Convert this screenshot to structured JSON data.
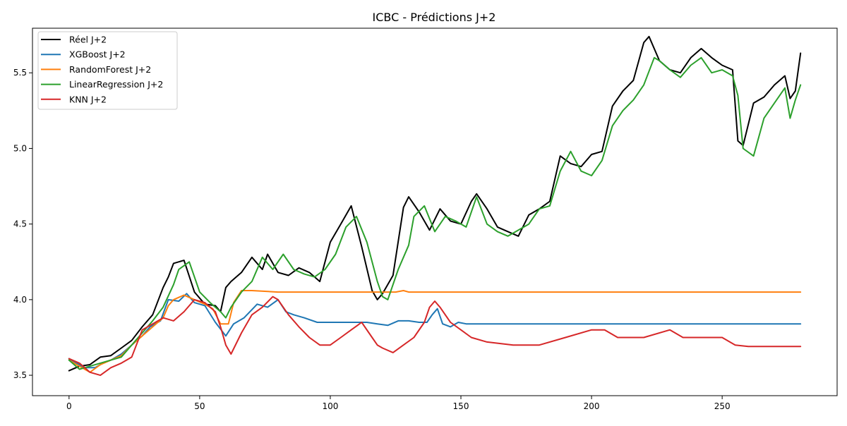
{
  "chart_data": {
    "type": "line",
    "title": "ICBC - Prédictions J+2",
    "xlabel": "",
    "ylabel": "",
    "xlim": [
      -14,
      294
    ],
    "ylim": [
      3.365,
      5.795
    ],
    "xticks": [
      0,
      50,
      100,
      150,
      200,
      250
    ],
    "yticks": [
      3.5,
      4.0,
      4.5,
      5.0,
      5.5
    ],
    "xtick_labels": [
      "0",
      "50",
      "100",
      "150",
      "200",
      "250"
    ],
    "ytick_labels": [
      "3.5",
      "4.0",
      "4.5",
      "5.0",
      "5.5"
    ],
    "grid": false,
    "legend_position": "upper-left",
    "series": [
      {
        "name": "Réel J+2",
        "color": "#000000",
        "x": [
          0,
          4,
          8,
          12,
          16,
          20,
          24,
          28,
          32,
          36,
          38,
          40,
          44,
          48,
          52,
          56,
          58,
          60,
          62,
          66,
          70,
          74,
          76,
          80,
          84,
          88,
          92,
          96,
          100,
          104,
          108,
          112,
          116,
          118,
          120,
          124,
          128,
          130,
          134,
          138,
          142,
          146,
          150,
          154,
          156,
          160,
          164,
          168,
          172,
          176,
          180,
          184,
          188,
          192,
          196,
          200,
          204,
          208,
          212,
          216,
          220,
          222,
          226,
          230,
          234,
          238,
          242,
          246,
          250,
          254,
          256,
          258,
          262,
          266,
          270,
          274,
          276,
          278,
          280
        ],
        "y": [
          3.53,
          3.56,
          3.57,
          3.62,
          3.63,
          3.68,
          3.73,
          3.82,
          3.9,
          4.08,
          4.15,
          4.24,
          4.26,
          4.05,
          3.97,
          3.96,
          3.92,
          4.08,
          4.12,
          4.18,
          4.28,
          4.2,
          4.3,
          4.18,
          4.16,
          4.21,
          4.18,
          4.12,
          4.38,
          4.5,
          4.62,
          4.35,
          4.06,
          4.0,
          4.04,
          4.16,
          4.61,
          4.68,
          4.58,
          4.46,
          4.6,
          4.52,
          4.5,
          4.65,
          4.7,
          4.6,
          4.48,
          4.45,
          4.42,
          4.56,
          4.6,
          4.65,
          4.95,
          4.9,
          4.88,
          4.96,
          4.98,
          5.28,
          5.38,
          5.45,
          5.7,
          5.74,
          5.58,
          5.52,
          5.5,
          5.6,
          5.66,
          5.6,
          5.55,
          5.52,
          5.05,
          5.02,
          5.3,
          5.34,
          5.42,
          5.48,
          5.33,
          5.38,
          5.63
        ]
      },
      {
        "name": "XGBoost J+2",
        "color": "#1f77b4",
        "x": [
          0,
          3,
          6,
          10,
          13,
          16,
          20,
          24,
          28,
          31,
          35,
          38,
          42,
          45,
          48,
          52,
          56,
          60,
          63,
          67,
          72,
          76,
          80,
          83,
          86,
          90,
          95,
          100,
          105,
          110,
          114,
          118,
          122,
          126,
          130,
          134,
          137,
          139,
          141,
          143,
          146,
          149,
          152,
          160,
          170,
          180,
          200,
          220,
          240,
          260,
          280
        ],
        "y": [
          3.61,
          3.58,
          3.55,
          3.55,
          3.58,
          3.6,
          3.64,
          3.7,
          3.76,
          3.82,
          3.86,
          4.0,
          3.99,
          4.04,
          3.98,
          3.96,
          3.85,
          3.76,
          3.84,
          3.88,
          3.97,
          3.95,
          4.0,
          3.92,
          3.9,
          3.88,
          3.85,
          3.85,
          3.85,
          3.85,
          3.85,
          3.84,
          3.83,
          3.86,
          3.86,
          3.85,
          3.85,
          3.9,
          3.94,
          3.84,
          3.82,
          3.85,
          3.84,
          3.84,
          3.84,
          3.84,
          3.84,
          3.84,
          3.84,
          3.84,
          3.84
        ]
      },
      {
        "name": "RandomForest J+2",
        "color": "#ff7f0e",
        "x": [
          0,
          4,
          8,
          12,
          16,
          20,
          24,
          28,
          32,
          36,
          38,
          40,
          44,
          48,
          52,
          55,
          58,
          61,
          63,
          66,
          70,
          80,
          86,
          90,
          100,
          110,
          120,
          125,
          128,
          130,
          140,
          160,
          200,
          240,
          280
        ],
        "y": [
          3.6,
          3.56,
          3.52,
          3.57,
          3.6,
          3.63,
          3.7,
          3.76,
          3.82,
          3.88,
          3.96,
          4.0,
          4.03,
          4.0,
          3.97,
          3.94,
          3.84,
          3.84,
          3.98,
          4.06,
          4.06,
          4.05,
          4.05,
          4.05,
          4.05,
          4.05,
          4.05,
          4.05,
          4.06,
          4.05,
          4.05,
          4.05,
          4.05,
          4.05,
          4.05
        ]
      },
      {
        "name": "LinearRegression J+2",
        "color": "#2ca02c",
        "x": [
          0,
          4,
          8,
          12,
          16,
          20,
          24,
          28,
          32,
          36,
          40,
          42,
          46,
          50,
          54,
          58,
          60,
          62,
          66,
          70,
          74,
          78,
          82,
          86,
          90,
          94,
          98,
          102,
          106,
          110,
          114,
          118,
          120,
          122,
          126,
          130,
          132,
          136,
          140,
          144,
          148,
          152,
          156,
          160,
          164,
          168,
          172,
          176,
          180,
          184,
          188,
          192,
          196,
          200,
          204,
          208,
          212,
          216,
          220,
          224,
          226,
          230,
          234,
          238,
          242,
          246,
          250,
          254,
          256,
          258,
          262,
          266,
          270,
          274,
          276,
          278,
          280
        ],
        "y": [
          3.6,
          3.54,
          3.56,
          3.58,
          3.6,
          3.62,
          3.7,
          3.78,
          3.86,
          3.95,
          4.1,
          4.2,
          4.25,
          4.05,
          3.98,
          3.92,
          3.88,
          3.95,
          4.05,
          4.12,
          4.28,
          4.2,
          4.3,
          4.2,
          4.17,
          4.15,
          4.2,
          4.3,
          4.48,
          4.55,
          4.38,
          4.12,
          4.02,
          4.0,
          4.2,
          4.36,
          4.55,
          4.62,
          4.45,
          4.55,
          4.52,
          4.48,
          4.68,
          4.5,
          4.45,
          4.42,
          4.46,
          4.5,
          4.6,
          4.62,
          4.85,
          4.98,
          4.85,
          4.82,
          4.92,
          5.15,
          5.25,
          5.32,
          5.42,
          5.6,
          5.58,
          5.52,
          5.47,
          5.55,
          5.6,
          5.5,
          5.52,
          5.48,
          5.35,
          5.0,
          4.95,
          5.2,
          5.3,
          5.4,
          5.2,
          5.32,
          5.42
        ]
      },
      {
        "name": "KNN J+2",
        "color": "#d62728",
        "x": [
          0,
          4,
          8,
          12,
          16,
          20,
          24,
          28,
          32,
          36,
          40,
          44,
          48,
          52,
          56,
          58,
          60,
          62,
          66,
          70,
          74,
          78,
          80,
          84,
          88,
          92,
          96,
          100,
          104,
          108,
          112,
          116,
          118,
          120,
          124,
          128,
          132,
          136,
          138,
          140,
          142,
          146,
          150,
          154,
          160,
          170,
          180,
          190,
          200,
          205,
          210,
          220,
          230,
          235,
          240,
          250,
          255,
          260,
          270,
          280
        ],
        "y": [
          3.61,
          3.58,
          3.52,
          3.5,
          3.55,
          3.58,
          3.62,
          3.8,
          3.84,
          3.88,
          3.86,
          3.92,
          4.0,
          3.98,
          3.92,
          3.82,
          3.7,
          3.64,
          3.78,
          3.9,
          3.95,
          4.02,
          4.0,
          3.9,
          3.82,
          3.75,
          3.7,
          3.7,
          3.75,
          3.8,
          3.85,
          3.75,
          3.7,
          3.68,
          3.65,
          3.7,
          3.75,
          3.85,
          3.95,
          3.99,
          3.95,
          3.85,
          3.8,
          3.75,
          3.72,
          3.7,
          3.7,
          3.75,
          3.8,
          3.8,
          3.75,
          3.75,
          3.8,
          3.75,
          3.75,
          3.75,
          3.7,
          3.69,
          3.69,
          3.69
        ]
      }
    ]
  }
}
